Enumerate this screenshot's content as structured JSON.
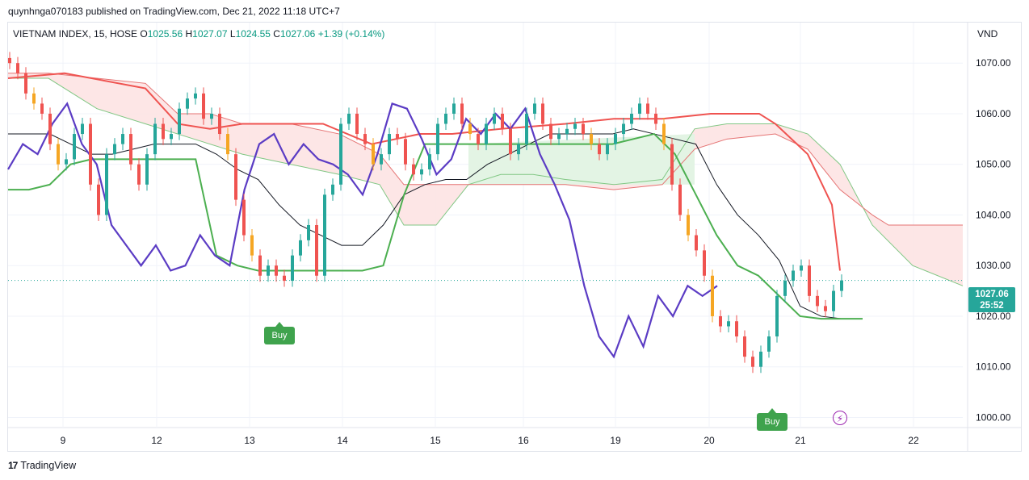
{
  "publisher_line": "quynhnga070183 published on TradingView.com, Dec 21, 2022 11:18 UTC+7",
  "legend": {
    "symbol": "VIETNAM INDEX, 15, HOSE",
    "open_label": "O",
    "open": "1025.56",
    "high_label": "H",
    "high": "1027.07",
    "low_label": "L",
    "low": "1024.55",
    "close_label": "C",
    "close": "1027.06",
    "change": "+1.39 (+0.14%)"
  },
  "currency": "VND",
  "last_price": {
    "price": "1027.06",
    "countdown": "25:52"
  },
  "signals": [
    {
      "label": "Buy"
    },
    {
      "label": "Buy"
    }
  ],
  "brand": "TradingView",
  "colors": {
    "up": "#26a69a",
    "down": "#ef5350",
    "wick_up": "#089981",
    "signal": "#3fa34d",
    "line_purple": "#5b3cc4",
    "line_black": "#131722",
    "line_red": "#ef5350",
    "line_green": "#4caf50",
    "cloud_red": "#fde3e3",
    "cloud_green": "#e3f4e4",
    "bar_orange": "#f5a623"
  },
  "chart_data": {
    "type": "line",
    "instrument": "VIETNAM INDEX",
    "interval": "15",
    "exchange": "HOSE",
    "x_tick_labels": [
      "9",
      "12",
      "13",
      "14",
      "15",
      "16",
      "19",
      "20",
      "21",
      "22"
    ],
    "y_tick_labels": [
      "1070.00",
      "1060.00",
      "1050.00",
      "1040.00",
      "1030.00",
      "1020.00",
      "1010.00",
      "1000.00"
    ],
    "ylim": [
      998,
      1078
    ],
    "last_close": 1027.06,
    "candles_close": [
      1070,
      1068,
      1064,
      1062,
      1060,
      1054,
      1050,
      1051,
      1056,
      1058,
      1046,
      1040,
      1052,
      1054,
      1056,
      1050,
      1046,
      1052,
      1058,
      1055,
      1056,
      1061,
      1063,
      1064,
      1059,
      1060,
      1056,
      1052,
      1043,
      1036,
      1032,
      1028,
      1030,
      1028,
      1027,
      1032,
      1035,
      1038,
      1028,
      1044,
      1046,
      1058,
      1060,
      1056,
      1054,
      1050,
      1052,
      1056,
      1055,
      1050,
      1048,
      1049,
      1052,
      1058,
      1060,
      1062,
      1058,
      1056,
      1054,
      1058,
      1060,
      1057,
      1052,
      1054,
      1060,
      1062,
      1058,
      1055,
      1056,
      1057,
      1058,
      1056,
      1054,
      1052,
      1054,
      1056,
      1058,
      1060,
      1062,
      1060,
      1058,
      1054,
      1046,
      1040,
      1036,
      1033,
      1028,
      1020,
      1018,
      1019,
      1016,
      1012,
      1010,
      1013,
      1016,
      1024,
      1027,
      1029,
      1030,
      1024,
      1022,
      1021,
      1025,
      1027.06
    ],
    "tenkan": [
      1056,
      1056,
      1056,
      1054,
      1052,
      1052,
      1053,
      1054,
      1054,
      1054,
      1052,
      1049,
      1047,
      1042,
      1038,
      1036,
      1034,
      1034,
      1038,
      1044,
      1046,
      1047,
      1047,
      1050,
      1052,
      1054,
      1056,
      1056,
      1056,
      1056,
      1057,
      1056,
      1055,
      1054,
      1046,
      1040,
      1036,
      1031,
      1022,
      1020,
      1019.5,
      1019.5
    ],
    "kijun": [
      1045,
      1045,
      1046,
      1050,
      1051,
      1051,
      1051,
      1051,
      1051,
      1051,
      1032,
      1030,
      1029,
      1029,
      1029,
      1029,
      1029,
      1029,
      1030,
      1044,
      1054,
      1054,
      1054,
      1054,
      1054,
      1054,
      1054,
      1054,
      1054,
      1054,
      1055,
      1056,
      1052,
      1044,
      1036,
      1030,
      1028,
      1024,
      1020,
      1019.5,
      1019.5,
      1019.5
    ],
    "purple_oscillator": [
      1049,
      1054,
      1052,
      1058,
      1062,
      1054,
      1050,
      1038,
      1034,
      1030,
      1034,
      1029,
      1030,
      1036,
      1032,
      1030,
      1045,
      1054,
      1056,
      1050,
      1054,
      1051,
      1050,
      1048,
      1044,
      1052,
      1062,
      1061,
      1055,
      1048,
      1051,
      1059,
      1056,
      1060,
      1057,
      1061,
      1052,
      1046,
      1039,
      1026,
      1016,
      1012,
      1020,
      1014,
      1024,
      1020,
      1026,
      1024,
      1026
    ]
  }
}
